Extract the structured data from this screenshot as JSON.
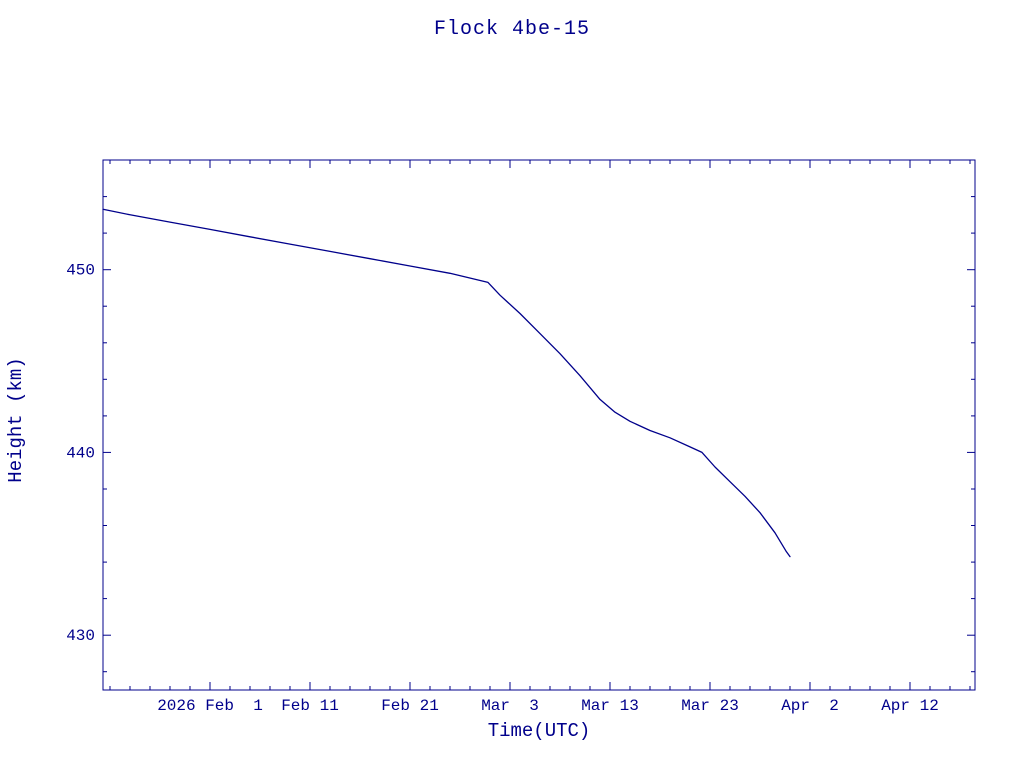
{
  "page": {
    "background_color": "#ffffff"
  },
  "chart_data": {
    "type": "line",
    "title": "Flock 4be-15",
    "xlabel": "Time(UTC)",
    "ylabel": "Height (km)",
    "colors": {
      "line": "#00008b",
      "axis": "#00008b",
      "text": "#00008b",
      "background": "#ffffff"
    },
    "legend": "none",
    "grid": false,
    "x_axis": {
      "unit": "days since 2026 Feb 1",
      "lim": [
        -10.7,
        76.5
      ],
      "major_ticks": [
        0,
        10,
        20,
        30,
        40,
        50,
        60,
        70
      ],
      "major_tick_labels": [
        "2026 Feb  1",
        "Feb 11",
        "Feb 21",
        "Mar  3",
        "Mar 13",
        "Mar 23",
        "Apr  2",
        "Apr 12"
      ],
      "minor_tick_interval": 2
    },
    "y_axis": {
      "lim": [
        427,
        456
      ],
      "major_ticks": [
        430,
        440,
        450
      ],
      "major_tick_labels": [
        "430",
        "440",
        "450"
      ],
      "minor_tick_interval": 2
    },
    "series": [
      {
        "name": "orbital-height",
        "points": [
          [
            -10.7,
            453.3
          ],
          [
            -8,
            453.0
          ],
          [
            -4,
            452.6
          ],
          [
            0,
            452.2
          ],
          [
            4,
            451.8
          ],
          [
            8,
            451.4
          ],
          [
            12,
            451.0
          ],
          [
            16,
            450.6
          ],
          [
            20,
            450.2
          ],
          [
            24,
            449.8
          ],
          [
            27.8,
            449.3
          ],
          [
            29,
            448.6
          ],
          [
            31,
            447.6
          ],
          [
            33,
            446.5
          ],
          [
            35,
            445.4
          ],
          [
            37,
            444.2
          ],
          [
            39,
            442.9
          ],
          [
            40.5,
            442.2
          ],
          [
            42,
            441.7
          ],
          [
            44,
            441.2
          ],
          [
            46,
            440.8
          ],
          [
            48,
            440.3
          ],
          [
            49.2,
            440.0
          ],
          [
            50.5,
            439.2
          ],
          [
            52,
            438.4
          ],
          [
            53.5,
            437.6
          ],
          [
            55,
            436.7
          ],
          [
            56.5,
            435.6
          ],
          [
            57.6,
            434.6
          ],
          [
            58,
            434.3
          ]
        ]
      }
    ]
  }
}
